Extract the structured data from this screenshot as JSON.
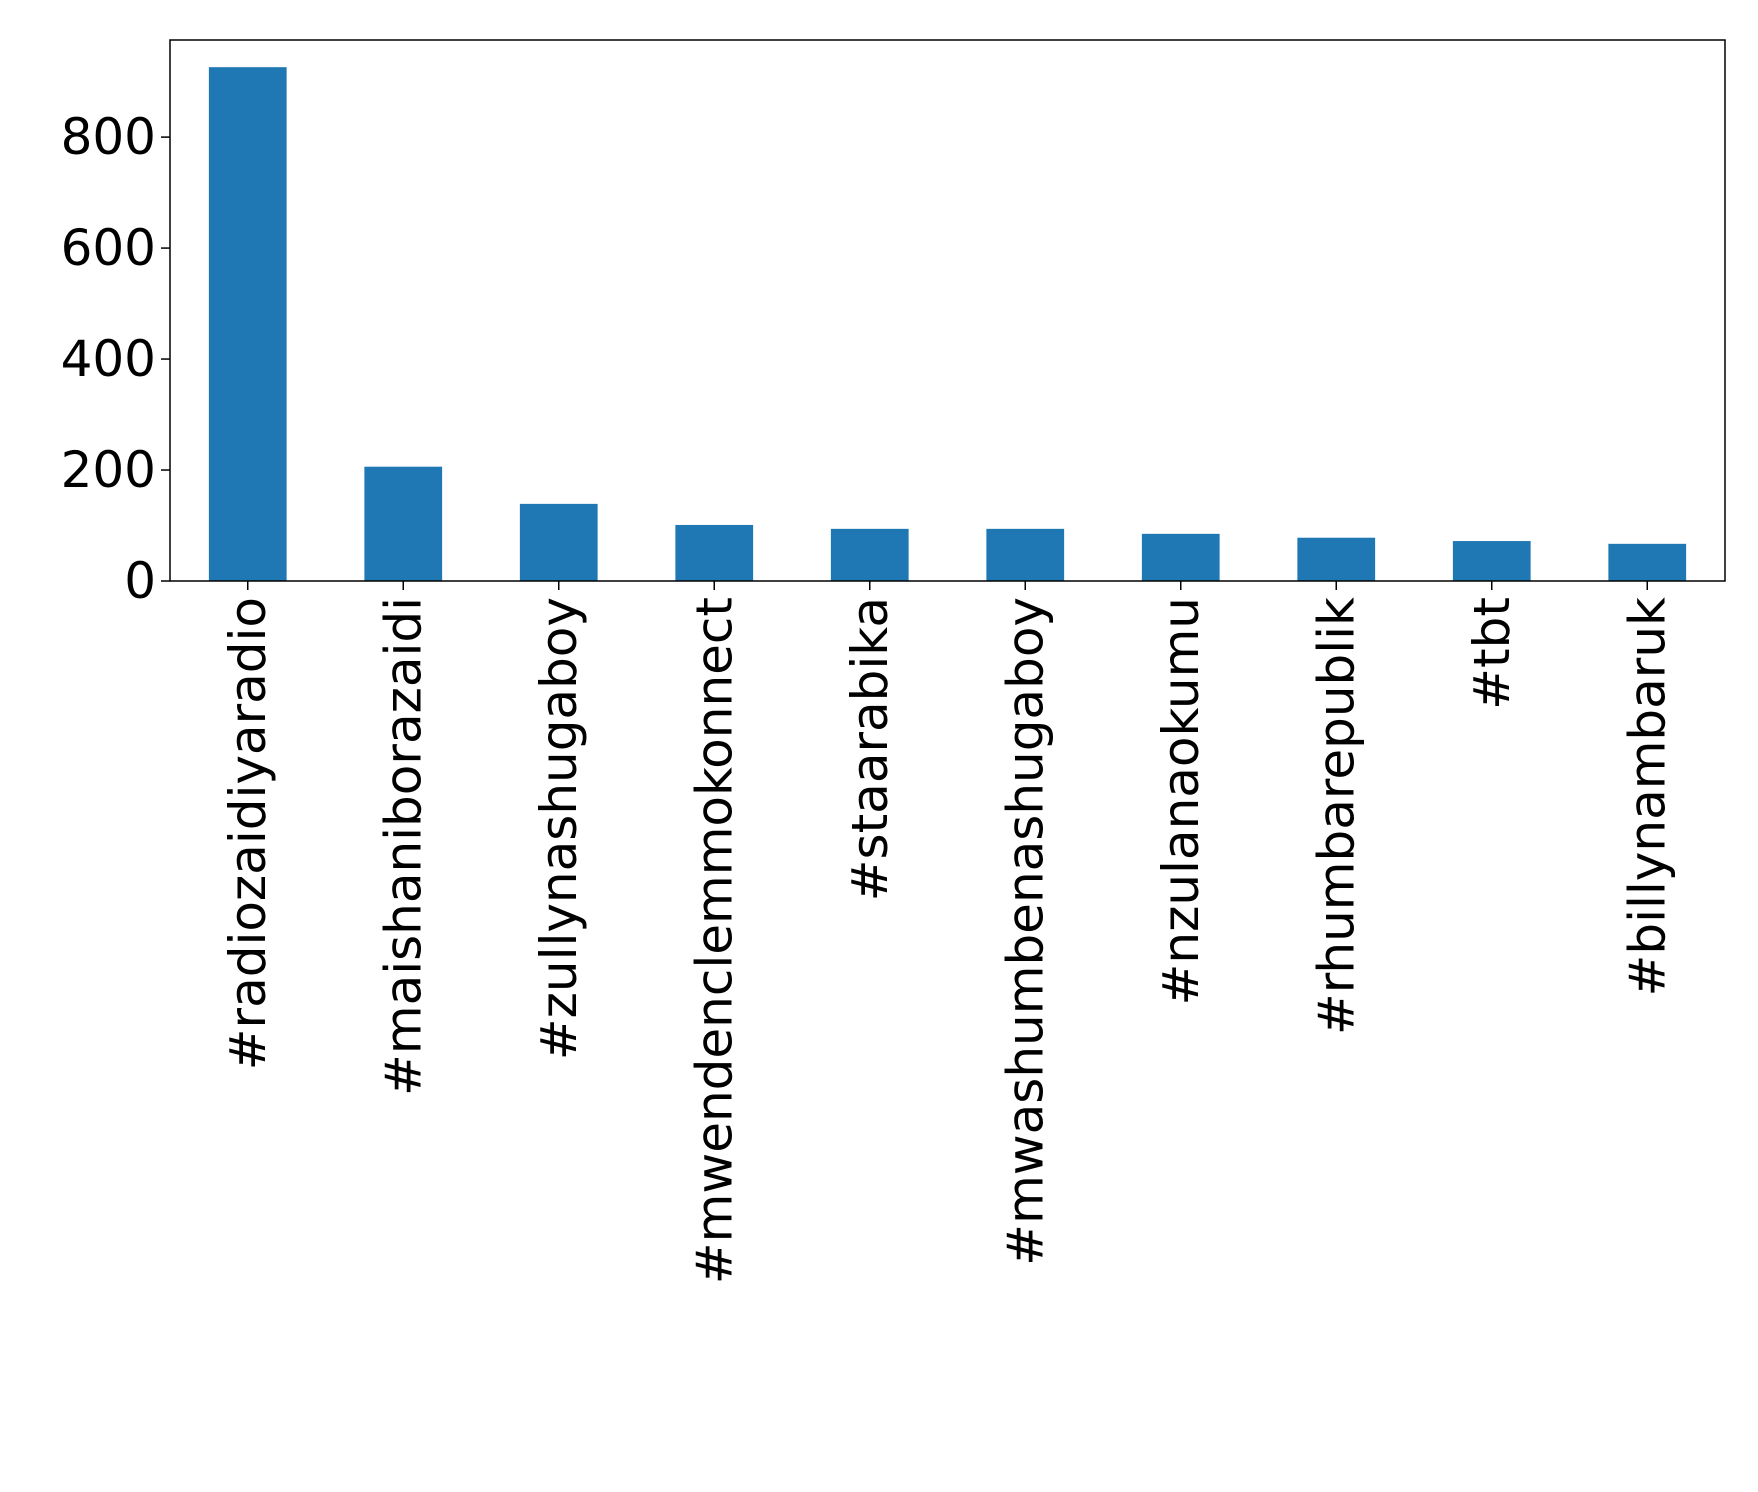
{
  "chart_data": {
    "type": "bar",
    "title": "",
    "xlabel": "",
    "ylabel": "",
    "categories": [
      "#radiozaidiyaradio",
      "#maishaniborazaidi",
      "#zullynashugaboy",
      "#mwendenclemmokonnect",
      "#staarabika",
      "#mwashumbenashugaboy",
      "#nzulanaokumu",
      "#rhumbarepublik",
      "#tbt",
      "#billynambaruk"
    ],
    "values": [
      926,
      206,
      139,
      101,
      94,
      94,
      85,
      78,
      72,
      67
    ],
    "ylim": [
      0,
      975
    ],
    "yticks": [
      0,
      200,
      400,
      600,
      800
    ],
    "grid": false,
    "bar_color": "#1f77b4"
  }
}
